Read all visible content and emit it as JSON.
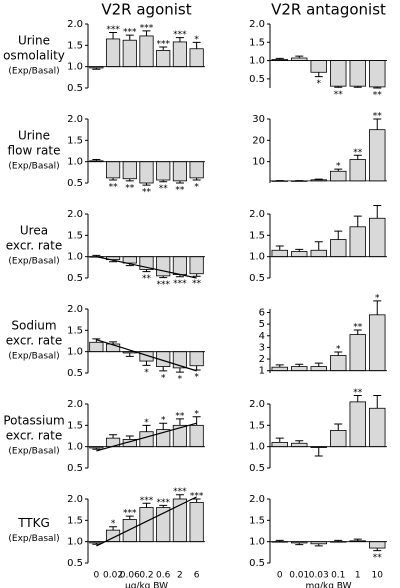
{
  "chart_data": [
    {
      "type": "bar",
      "title": "V2R agonist",
      "ylabel": [
        "Urine",
        "osmolality",
        "(Exp/Basal)"
      ],
      "baseline": 1,
      "color": "#d9d9d9",
      "ylim": [
        0.5,
        2.0
      ],
      "yticks": [
        {
          "value": 0.5,
          "label": "0.5"
        },
        {
          "value": 1,
          "label": "1.0"
        },
        {
          "value": 1.5,
          "label": "1.5"
        },
        {
          "value": 2,
          "label": "2.0"
        }
      ],
      "values": [
        0.97,
        1.65,
        1.62,
        1.72,
        1.38,
        1.58,
        1.42
      ],
      "errors": [
        0.03,
        0.15,
        0.12,
        0.12,
        0.08,
        0.1,
        0.15
      ],
      "significance": [
        "",
        "***",
        "***",
        "***",
        "***",
        "***",
        "*"
      ]
    },
    {
      "type": "bar",
      "title": "V2R antagonist",
      "baseline": 1,
      "color": "#d9d9d9",
      "ylim": [
        0.25,
        2.0
      ],
      "yticks": [
        {
          "value": 0.5,
          "label": "0.5"
        },
        {
          "value": 1,
          "label": "1.0"
        },
        {
          "value": 1.5,
          "label": "1.5"
        },
        {
          "value": 2,
          "label": "2.0"
        }
      ],
      "values": [
        1.03,
        1.07,
        0.68,
        0.3,
        0.3,
        0.28
      ],
      "errors": [
        0.03,
        0.05,
        0.12,
        0.03,
        0.03,
        0.03
      ],
      "significance": [
        "",
        "",
        "*",
        "**",
        "",
        "**"
      ]
    },
    {
      "type": "bar",
      "ylabel": [
        "Urine",
        "flow rate",
        "(Exp/Basal)"
      ],
      "baseline": 1,
      "color": "#d9d9d9",
      "ylim": [
        0.5,
        2.0
      ],
      "yticks": [
        {
          "value": 0.5,
          "label": "0.5"
        },
        {
          "value": 1,
          "label": "1.0"
        },
        {
          "value": 1.5,
          "label": "1.5"
        },
        {
          "value": 2,
          "label": "2.0"
        }
      ],
      "values": [
        1.02,
        0.62,
        0.6,
        0.5,
        0.57,
        0.55,
        0.62
      ],
      "errors": [
        0.03,
        0.05,
        0.05,
        0.05,
        0.04,
        0.05,
        0.05
      ],
      "significance": [
        "",
        "**",
        "**",
        "**",
        "**",
        "**",
        "*"
      ]
    },
    {
      "type": "bar",
      "baseline": 1,
      "color": "#d9d9d9",
      "ylim": [
        0,
        30
      ],
      "yticks": [
        10,
        20,
        30
      ],
      "values": [
        1,
        1,
        1.5,
        5.5,
        11,
        25
      ],
      "errors": [
        0.1,
        0.1,
        0.3,
        1,
        2,
        5
      ],
      "significance": [
        "",
        "",
        "",
        "*",
        "**",
        "**"
      ]
    },
    {
      "type": "bar",
      "ylabel": [
        "Urea",
        "excr. rate",
        "(Exp/Basal)"
      ],
      "baseline": 1,
      "color": "#d9d9d9",
      "trend": [
        1.0,
        0.5
      ],
      "ylim": [
        0.5,
        2.0
      ],
      "yticks": [
        {
          "value": 0.5,
          "label": "0.5"
        },
        {
          "value": 1,
          "label": "1.0"
        },
        {
          "value": 1.5,
          "label": "1.5"
        },
        {
          "value": 2,
          "label": "2.0"
        }
      ],
      "values": [
        1.0,
        0.93,
        0.85,
        0.7,
        0.55,
        0.58,
        0.6
      ],
      "errors": [
        0.03,
        0.05,
        0.06,
        0.05,
        0.04,
        0.05,
        0.06
      ],
      "significance": [
        "",
        "",
        "",
        "**",
        "***",
        "***",
        "**"
      ]
    },
    {
      "type": "bar",
      "baseline": 1,
      "color": "#d9d9d9",
      "ylim": [
        0.5,
        2.0
      ],
      "yticks": [
        {
          "value": 0.5,
          "label": "0.5"
        },
        {
          "value": 1,
          "label": "1.0"
        },
        {
          "value": 1.5,
          "label": "1.5"
        },
        {
          "value": 2,
          "label": "2.0"
        }
      ],
      "values": [
        1.15,
        1.12,
        1.15,
        1.4,
        1.7,
        1.9
      ],
      "errors": [
        0.1,
        0.05,
        0.2,
        0.2,
        0.25,
        0.3
      ],
      "significance": [
        "",
        "",
        "",
        "",
        "",
        ""
      ]
    },
    {
      "type": "bar",
      "ylabel": [
        "Sodium",
        "excr. rate",
        "(Exp/Basal)"
      ],
      "baseline": 1,
      "color": "#d9d9d9",
      "trend": [
        1.28,
        0.55
      ],
      "ylim": [
        0.5,
        2.0
      ],
      "yticks": [
        {
          "value": 0.5,
          "label": "0.5"
        },
        {
          "value": 1,
          "label": "1.0"
        },
        {
          "value": 1.5,
          "label": "1.5"
        },
        {
          "value": 2,
          "label": "2.0"
        }
      ],
      "values": [
        1.22,
        1.18,
        0.97,
        0.78,
        0.65,
        0.62,
        0.67
      ],
      "errors": [
        0.08,
        0.05,
        0.08,
        0.1,
        0.1,
        0.1,
        0.1
      ],
      "significance": [
        "",
        "",
        "",
        "*",
        "*",
        "*",
        "*"
      ]
    },
    {
      "type": "bar",
      "baseline": 1,
      "color": "#d9d9d9",
      "ylim": [
        0.8,
        6.3
      ],
      "yticks": [
        1,
        2,
        3,
        4,
        5,
        6
      ],
      "values": [
        1.3,
        1.35,
        1.35,
        2.3,
        4.1,
        5.8
      ],
      "errors": [
        0.2,
        0.2,
        0.3,
        0.3,
        0.4,
        1.2
      ],
      "significance": [
        "",
        "",
        "",
        "*",
        "**",
        "*"
      ]
    },
    {
      "type": "bar",
      "ylabel": [
        "Potassium",
        "excr. rate",
        "(Exp/Basal)"
      ],
      "baseline": 1,
      "color": "#d9d9d9",
      "trend": [
        0.9,
        1.55
      ],
      "ylim": [
        0.5,
        2.0
      ],
      "yticks": [
        {
          "value": 0.5,
          "label": "0.5"
        },
        {
          "value": 1,
          "label": "1.0"
        },
        {
          "value": 1.5,
          "label": "1.5"
        },
        {
          "value": 2,
          "label": "2.0"
        }
      ],
      "values": [
        0.97,
        1.2,
        1.17,
        1.35,
        1.4,
        1.5,
        1.5
      ],
      "errors": [
        0.03,
        0.08,
        0.08,
        0.15,
        0.15,
        0.15,
        0.2
      ],
      "significance": [
        "",
        "",
        "",
        "*",
        "*",
        "**",
        "*"
      ]
    },
    {
      "type": "bar",
      "baseline": 1,
      "color": "#d9d9d9",
      "ylim": [
        0.5,
        2.0
      ],
      "yticks": [
        {
          "value": 0.5,
          "label": "0.5"
        },
        {
          "value": 1,
          "label": "1.0"
        },
        {
          "value": 1.5,
          "label": "1.5"
        },
        {
          "value": 2,
          "label": "2.0"
        }
      ],
      "values": [
        1.1,
        1.08,
        0.98,
        1.38,
        2.05,
        1.9
      ],
      "errors": [
        0.1,
        0.06,
        0.2,
        0.15,
        0.15,
        0.3
      ],
      "significance": [
        "",
        "",
        "",
        "",
        "**",
        ""
      ]
    },
    {
      "type": "bar",
      "ylabel": [
        "TTKG",
        "(Exp/Basal)"
      ],
      "baseline": 1,
      "color": "#d9d9d9",
      "trend": [
        0.9,
        2.05
      ],
      "categories": [
        "0",
        "0.02",
        "0.06",
        "0.2",
        "0.6",
        "2",
        "6"
      ],
      "xlabel": "µg/kg BW",
      "ylim": [
        0.5,
        2.0
      ],
      "yticks": [
        {
          "value": 0.5,
          "label": "0.5"
        },
        {
          "value": 1,
          "label": "1.0"
        },
        {
          "value": 1.5,
          "label": "1.5"
        },
        {
          "value": 2,
          "label": "2.0"
        }
      ],
      "values": [
        0.97,
        1.27,
        1.52,
        1.8,
        1.8,
        2.0,
        1.92
      ],
      "errors": [
        0.03,
        0.08,
        0.08,
        0.1,
        0.05,
        0.1,
        0.08
      ],
      "significance": [
        "",
        "*",
        "***",
        "***",
        "***",
        "***",
        "***"
      ]
    },
    {
      "type": "bar",
      "baseline": 1,
      "color": "#d9d9d9",
      "categories": [
        "0",
        "0.01",
        "0.03",
        "0.1",
        "1",
        "10"
      ],
      "xlabel": "mg/kg BW",
      "ylim": [
        0.5,
        2.0
      ],
      "yticks": [
        {
          "value": 0.5,
          "label": "0.5"
        },
        {
          "value": 1,
          "label": "1.0"
        },
        {
          "value": 1.5,
          "label": "1.5"
        },
        {
          "value": 2,
          "label": "2.0"
        }
      ],
      "values": [
        1.0,
        0.97,
        0.95,
        1.0,
        1.02,
        0.85
      ],
      "errors": [
        0.03,
        0.04,
        0.05,
        0.03,
        0.04,
        0.06
      ],
      "significance": [
        "",
        "",
        "",
        "",
        "",
        "**"
      ]
    }
  ]
}
